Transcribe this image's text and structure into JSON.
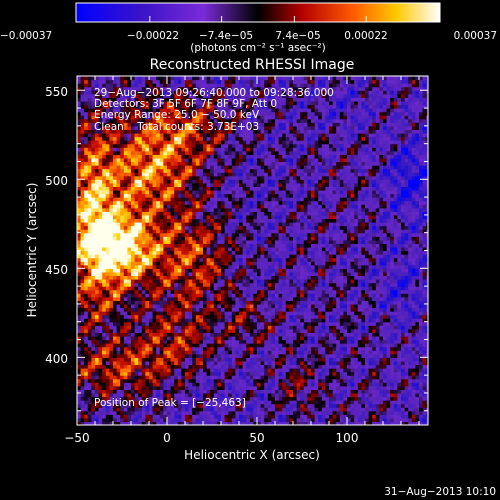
{
  "chart_data": {
    "type": "heatmap",
    "title": "Reconstructed RHESSI Image",
    "xlabel": "Heliocentric X (arcsec)",
    "ylabel": "Heliocentric Y (arcsec)",
    "xlim": [
      -50,
      145
    ],
    "ylim": [
      362,
      558
    ],
    "x_ticks": [
      -50,
      0,
      50,
      100
    ],
    "y_ticks": [
      400,
      450,
      500,
      550
    ],
    "x_tick_labels": [
      "−50",
      "0",
      "50",
      "100"
    ],
    "y_tick_labels": [
      "400",
      "450",
      "500",
      "550"
    ],
    "colorbar": {
      "range": [
        -0.00037,
        0.00037
      ],
      "tick_values": [
        -0.00037,
        -0.00022,
        -7.4e-05,
        7.4e-05,
        0.00022,
        0.00037
      ],
      "tick_labels": [
        "−0.00037",
        "−0.00022",
        "−7.4e−05",
        "7.4e−05",
        "0.00022",
        "0.00037"
      ],
      "units_label": "(photons cm⁻² s⁻¹ asec⁻²)",
      "colormap": [
        "#0000ff",
        "#4b0082",
        "#8a2be2",
        "#000000",
        "#cc0000",
        "#ff7000",
        "#ffd000",
        "#ffffff"
      ]
    },
    "annotations": [
      "29−Aug−2013 09:26:40.000 to 09:28:36.000",
      "Detectors: 3F 5F 6F 7F 8F 9F, Att 0",
      "Energy Range: 25.0 − 50.0 keV",
      "Clean    Total counts: 3.73E+03"
    ],
    "peak_label": "Position of Peak = [−25,463]",
    "peak": {
      "x": -25,
      "y": 463
    },
    "grid": false,
    "legend": "none"
  },
  "footer": {
    "timestamp": "31−Aug−2013 10:10"
  }
}
